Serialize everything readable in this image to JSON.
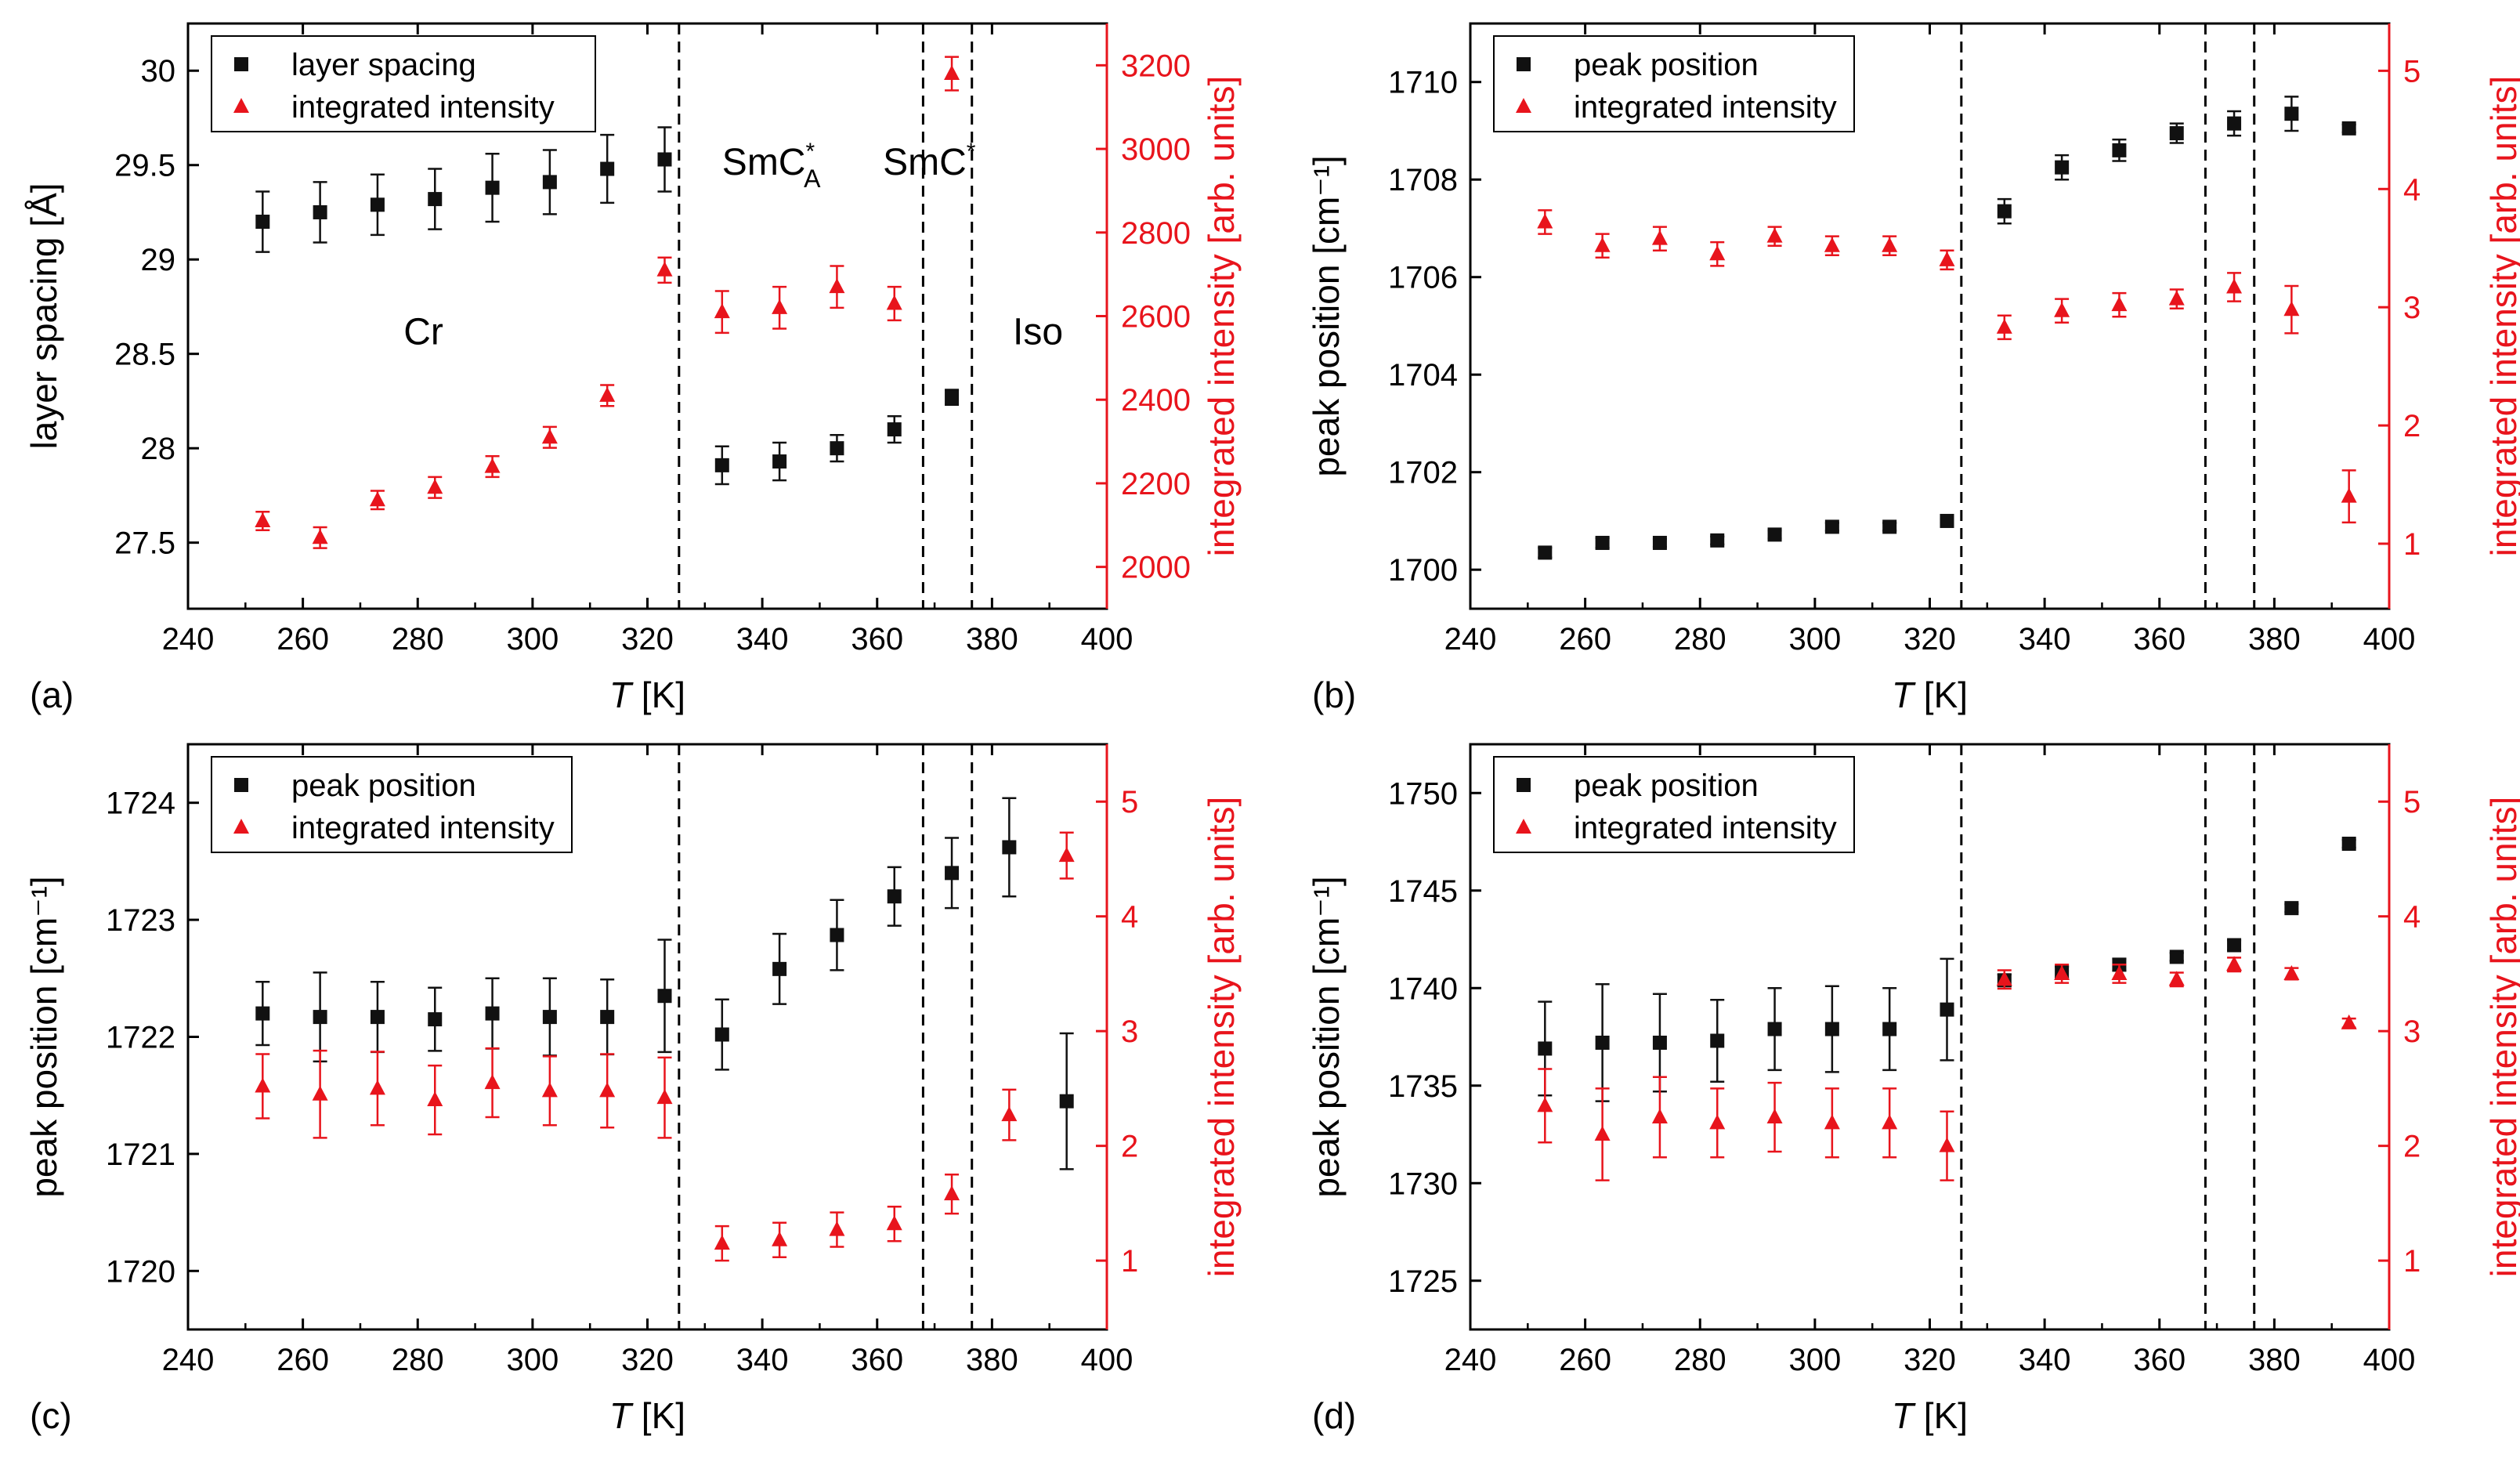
{
  "colors": {
    "black": "#111111",
    "red": "#e8141c",
    "frame": "#000000"
  },
  "x_axis": {
    "label_italic": "T",
    "label_rest": " [K]"
  },
  "chart_data": [
    {
      "id": "a",
      "panel_label": "(a)",
      "type": "scatter",
      "xlim": [
        240,
        400
      ],
      "xticks": [
        "240",
        "260",
        "280",
        "300",
        "320",
        "340",
        "360",
        "380",
        "400"
      ],
      "xtick_values": [
        240,
        260,
        280,
        300,
        320,
        340,
        360,
        380,
        400
      ],
      "ylabel_left": "layer spacing [Å]",
      "ylim_left": [
        27.15,
        30.25
      ],
      "yticks_left": [
        "27.5",
        "28",
        "28.5",
        "29",
        "29.5",
        "30"
      ],
      "ytick_values_left": [
        27.5,
        28,
        28.5,
        29,
        29.5,
        30
      ],
      "ylabel_right": "integrated intensity [arb. units]",
      "ylim_right": [
        1900,
        3300
      ],
      "yticks_right": [
        "2000",
        "2200",
        "2400",
        "2600",
        "2800",
        "3000",
        "3200"
      ],
      "ytick_values_right": [
        2000,
        2200,
        2400,
        2600,
        2800,
        3000,
        3200
      ],
      "legend": [
        "layer spacing",
        "integrated intensity"
      ],
      "phase_boundaries": [
        325.5,
        368,
        376.5
      ],
      "annotations": [
        "Cr",
        "SmC",
        "A",
        "SmC",
        "Iso"
      ],
      "series_left": {
        "name": "layer spacing",
        "x": [
          253,
          263,
          273,
          283,
          293,
          303,
          313,
          323,
          333,
          343,
          353,
          363,
          373
        ],
        "y": [
          29.2,
          29.25,
          29.29,
          29.32,
          29.38,
          29.41,
          29.48,
          29.53,
          27.91,
          27.93,
          28.0,
          28.1,
          28.27
        ],
        "err": [
          0.16,
          0.16,
          0.16,
          0.16,
          0.18,
          0.17,
          0.18,
          0.17,
          0.1,
          0.1,
          0.07,
          0.07,
          0.04
        ]
      },
      "series_right": {
        "name": "integrated intensity",
        "x": [
          253,
          263,
          273,
          283,
          293,
          303,
          313,
          323,
          333,
          343,
          353,
          363,
          373
        ],
        "y": [
          2110,
          2070,
          2160,
          2190,
          2240,
          2310,
          2410,
          2710,
          2610,
          2620,
          2670,
          2630,
          3180
        ],
        "err": [
          22,
          25,
          22,
          25,
          25,
          25,
          25,
          30,
          50,
          50,
          50,
          40,
          40
        ]
      }
    },
    {
      "id": "b",
      "panel_label": "(b)",
      "type": "scatter",
      "xlim": [
        240,
        400
      ],
      "xticks": [
        "240",
        "260",
        "280",
        "300",
        "320",
        "340",
        "360",
        "380",
        "400"
      ],
      "xtick_values": [
        240,
        260,
        280,
        300,
        320,
        340,
        360,
        380,
        400
      ],
      "ylabel_left": "peak position [cm⁻¹]",
      "ylim_left": [
        1699.2,
        1711.2
      ],
      "yticks_left": [
        "1700",
        "1702",
        "1704",
        "1706",
        "1708",
        "1710"
      ],
      "ytick_values_left": [
        1700,
        1702,
        1704,
        1706,
        1708,
        1710
      ],
      "ylabel_right": "integrated intensity [arb. units]",
      "ylim_right": [
        0.45,
        5.4
      ],
      "yticks_right": [
        "1",
        "2",
        "3",
        "4",
        "5"
      ],
      "ytick_values_right": [
        1,
        2,
        3,
        4,
        5
      ],
      "legend": [
        "peak position",
        "integrated intensity"
      ],
      "phase_boundaries": [
        325.5,
        368,
        376.5
      ],
      "annotations": [],
      "series_left": {
        "name": "peak position",
        "x": [
          253,
          263,
          273,
          283,
          293,
          303,
          313,
          323,
          333,
          343,
          353,
          363,
          373,
          383,
          393
        ],
        "y": [
          1700.35,
          1700.55,
          1700.55,
          1700.6,
          1700.72,
          1700.88,
          1700.88,
          1701.0,
          1707.35,
          1708.25,
          1708.6,
          1708.95,
          1709.15,
          1709.35,
          1709.05
        ],
        "err": [
          0.1,
          0.1,
          0.08,
          0.08,
          0.08,
          0.08,
          0.08,
          0.05,
          0.25,
          0.25,
          0.22,
          0.2,
          0.25,
          0.35,
          0.08
        ]
      },
      "series_right": {
        "name": "integrated intensity",
        "x": [
          253,
          263,
          273,
          283,
          293,
          303,
          313,
          323,
          333,
          343,
          353,
          363,
          373,
          383,
          393
        ],
        "y": [
          3.72,
          3.52,
          3.58,
          3.45,
          3.6,
          3.52,
          3.52,
          3.4,
          2.83,
          2.97,
          3.02,
          3.07,
          3.17,
          2.98,
          1.4
        ],
        "err": [
          0.1,
          0.1,
          0.1,
          0.1,
          0.08,
          0.08,
          0.08,
          0.08,
          0.1,
          0.1,
          0.1,
          0.08,
          0.12,
          0.2,
          0.22
        ]
      }
    },
    {
      "id": "c",
      "panel_label": "(c)",
      "type": "scatter",
      "xlim": [
        240,
        400
      ],
      "xticks": [
        "240",
        "260",
        "280",
        "300",
        "320",
        "340",
        "360",
        "380",
        "400"
      ],
      "xtick_values": [
        240,
        260,
        280,
        300,
        320,
        340,
        360,
        380,
        400
      ],
      "ylabel_left": "peak position [cm⁻¹]",
      "ylim_left": [
        1719.5,
        1724.5
      ],
      "yticks_left": [
        "1720",
        "1721",
        "1722",
        "1723",
        "1724"
      ],
      "ytick_values_left": [
        1720,
        1721,
        1722,
        1723,
        1724
      ],
      "ylabel_right": "integrated intensity [arb. units]",
      "ylim_right": [
        0.4,
        5.5
      ],
      "yticks_right": [
        "1",
        "2",
        "3",
        "4",
        "5"
      ],
      "ytick_values_right": [
        1,
        2,
        3,
        4,
        5
      ],
      "legend": [
        "peak position",
        "integrated intensity"
      ],
      "phase_boundaries": [
        325.5,
        368,
        376.5
      ],
      "annotations": [],
      "series_left": {
        "name": "peak position",
        "x": [
          253,
          263,
          273,
          283,
          293,
          303,
          313,
          323,
          333,
          343,
          353,
          363,
          373,
          383,
          393
        ],
        "y": [
          1722.2,
          1722.17,
          1722.17,
          1722.15,
          1722.2,
          1722.17,
          1722.17,
          1722.35,
          1722.02,
          1722.58,
          1722.87,
          1723.2,
          1723.4,
          1723.62,
          1721.45
        ],
        "err": [
          0.27,
          0.38,
          0.3,
          0.27,
          0.3,
          0.33,
          0.32,
          0.48,
          0.3,
          0.3,
          0.3,
          0.25,
          0.3,
          0.42,
          0.58
        ]
      },
      "series_right": {
        "name": "integrated intensity",
        "x": [
          253,
          263,
          273,
          283,
          293,
          303,
          313,
          323,
          333,
          343,
          353,
          363,
          373,
          383,
          393
        ],
        "y": [
          2.52,
          2.45,
          2.5,
          2.4,
          2.55,
          2.48,
          2.48,
          2.42,
          1.15,
          1.18,
          1.27,
          1.32,
          1.58,
          2.27,
          4.53
        ],
        "err": [
          0.28,
          0.38,
          0.32,
          0.3,
          0.3,
          0.3,
          0.32,
          0.35,
          0.15,
          0.15,
          0.15,
          0.15,
          0.17,
          0.22,
          0.2
        ]
      }
    },
    {
      "id": "d",
      "panel_label": "(d)",
      "type": "scatter",
      "xlim": [
        240,
        400
      ],
      "xticks": [
        "240",
        "260",
        "280",
        "300",
        "320",
        "340",
        "360",
        "380",
        "400"
      ],
      "xtick_values": [
        240,
        260,
        280,
        300,
        320,
        340,
        360,
        380,
        400
      ],
      "ylabel_left": "peak position [cm⁻¹]",
      "ylim_left": [
        1722.5,
        1752.5
      ],
      "yticks_left": [
        "1725",
        "1730",
        "1735",
        "1740",
        "1745",
        "1750"
      ],
      "ytick_values_left": [
        1725,
        1730,
        1735,
        1740,
        1745,
        1750
      ],
      "ylabel_right": "integrated intensity [arb. units]",
      "ylim_right": [
        0.4,
        5.5
      ],
      "yticks_right": [
        "1",
        "2",
        "3",
        "4",
        "5"
      ],
      "ytick_values_right": [
        1,
        2,
        3,
        4,
        5
      ],
      "legend": [
        "peak position",
        "integrated intensity"
      ],
      "phase_boundaries": [
        325.5,
        368,
        376.5
      ],
      "annotations": [],
      "series_left": {
        "name": "peak position",
        "x": [
          253,
          263,
          273,
          283,
          293,
          303,
          313,
          323,
          333,
          343,
          353,
          363,
          373,
          383,
          393
        ],
        "y": [
          1736.9,
          1737.2,
          1737.2,
          1737.3,
          1737.9,
          1737.9,
          1737.9,
          1738.9,
          1740.4,
          1740.8,
          1741.2,
          1741.6,
          1742.2,
          1744.1,
          1747.4
        ],
        "err": [
          2.4,
          3.0,
          2.5,
          2.1,
          2.1,
          2.2,
          2.1,
          2.6,
          0.3,
          0.3,
          0.3,
          0.2,
          0.25,
          0.2,
          0.2
        ]
      },
      "series_right": {
        "name": "integrated intensity",
        "x": [
          253,
          263,
          273,
          283,
          293,
          303,
          313,
          323,
          333,
          343,
          353,
          363,
          373,
          383,
          393
        ],
        "y": [
          2.35,
          2.1,
          2.25,
          2.2,
          2.25,
          2.2,
          2.2,
          2.0,
          3.45,
          3.5,
          3.5,
          3.45,
          3.58,
          3.5,
          3.07
        ],
        "err": [
          0.32,
          0.4,
          0.35,
          0.3,
          0.3,
          0.3,
          0.3,
          0.3,
          0.08,
          0.08,
          0.08,
          0.06,
          0.06,
          0.05,
          0.04
        ]
      }
    }
  ]
}
